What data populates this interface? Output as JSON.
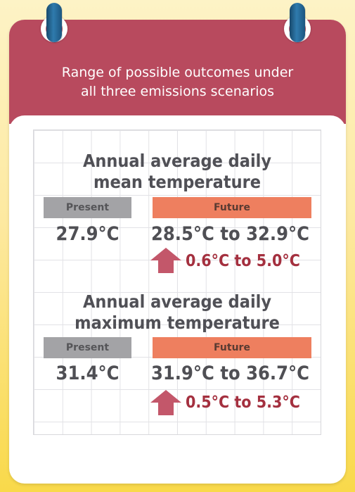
{
  "header": {
    "title": "Range of possible outcomes under\nall three emissions scenarios"
  },
  "colors": {
    "header_bg": "#b84a5e",
    "present_tag": "#a3a3a6",
    "future_tag": "#ee7f5f",
    "change_text": "#a4303f",
    "arrow": "#c3576a",
    "background": "#fde9a0"
  },
  "icons": {
    "binder_rings": "binder-ring-icon",
    "increase": "up-arrow-icon"
  },
  "sections": [
    {
      "title": "Annual average daily\nmean temperature",
      "present_label": "Present",
      "future_label": "Future",
      "present_value": "27.9°C",
      "future_value": "28.5°C to 32.9°C",
      "change": "0.6°C to 5.0°C"
    },
    {
      "title": "Annual average daily\nmaximum temperature",
      "present_label": "Present",
      "future_label": "Future",
      "present_value": "31.4°C",
      "future_value": "31.9°C to 36.7°C",
      "change": "0.5°C to 5.3°C"
    }
  ]
}
